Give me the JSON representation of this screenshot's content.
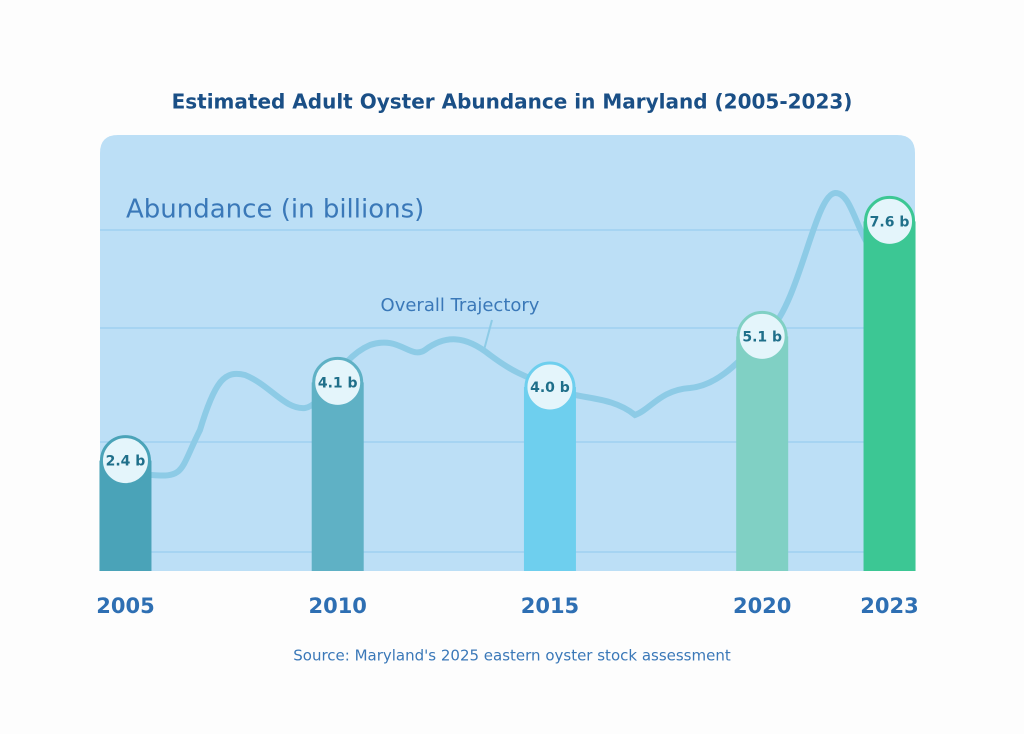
{
  "chart_data": {
    "type": "bar",
    "title": "Estimated Adult Oyster Abundance in Maryland  (2005-2023)",
    "y_label": "Abundance (in billions)",
    "annotation": "Overall Trajectory",
    "source": "Source: Maryland's 2025 eastern oyster stock assessment",
    "x": [
      2005,
      2010,
      2015,
      2020,
      2023
    ],
    "values": [
      2.4,
      4.1,
      4.0,
      5.1,
      7.6
    ],
    "value_labels": [
      "2.4 b",
      "4.1 b",
      "4.0 b",
      "5.1 b",
      "7.6 b"
    ],
    "colors": [
      "#4aa3b8",
      "#5fb1c5",
      "#6ecfee",
      "#80d0c4",
      "#3cc794"
    ],
    "xlim": [
      2004.4,
      2023.6
    ],
    "ylim": [
      0,
      9
    ]
  }
}
